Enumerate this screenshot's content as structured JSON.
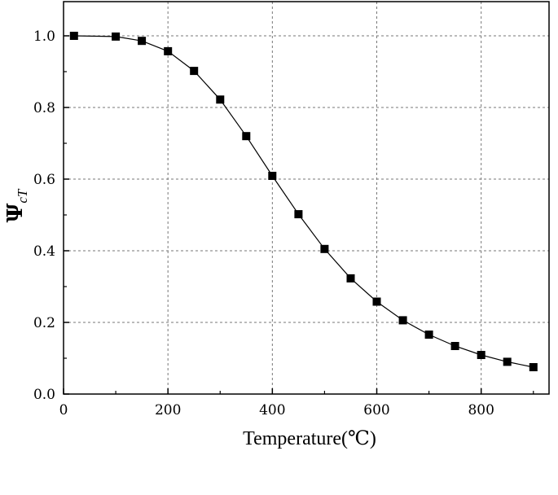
{
  "chart_data": {
    "type": "line",
    "title": "",
    "xlabel": "Temperature(℃)",
    "ylabel": "Ψ",
    "ylabel_subscript": "cT",
    "xlim": [
      0,
      930
    ],
    "ylim": [
      0,
      1.0
    ],
    "xticks": [
      0,
      200,
      400,
      600,
      800
    ],
    "xtick_labels": [
      "0",
      "200",
      "400",
      "600",
      "800"
    ],
    "yticks": [
      0,
      0.2,
      0.4,
      0.6,
      0.8,
      1.0
    ],
    "ytick_labels": [
      "0.0",
      "0.2",
      "0.4",
      "0.6",
      "0.8",
      "1.0"
    ],
    "grid": true,
    "series": [
      {
        "marker": "square",
        "color": "#000000",
        "x": [
          20,
          100,
          150,
          200,
          250,
          300,
          350,
          400,
          450,
          500,
          550,
          600,
          650,
          700,
          750,
          800,
          850,
          900
        ],
        "y": [
          1.0,
          0.998,
          0.986,
          0.957,
          0.902,
          0.822,
          0.72,
          0.609,
          0.502,
          0.405,
          0.323,
          0.258,
          0.206,
          0.166,
          0.134,
          0.109,
          0.09,
          0.075
        ]
      }
    ]
  }
}
